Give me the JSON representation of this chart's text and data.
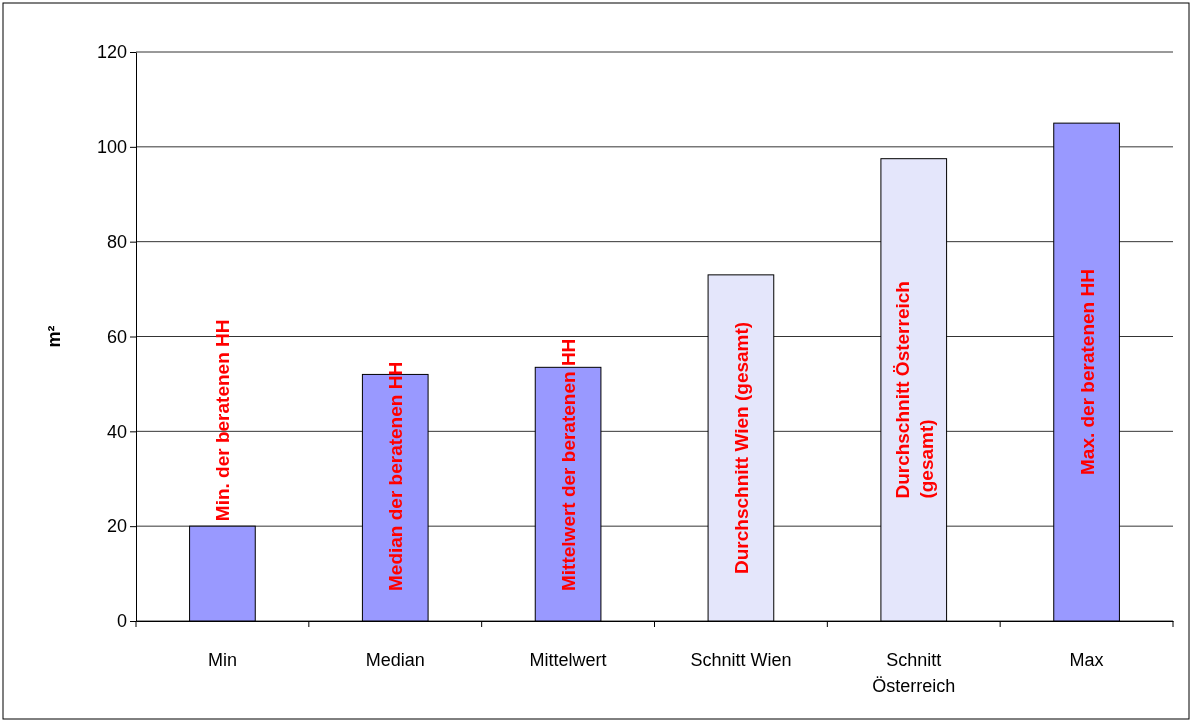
{
  "chart_data": {
    "type": "bar",
    "ylabel": "m²",
    "categories": [
      "Min",
      "Median",
      "Mittelwert",
      "Schnitt Wien",
      "Schnitt Österreich",
      "Max"
    ],
    "values": [
      20,
      52,
      53.5,
      73,
      97.5,
      105
    ],
    "colors": [
      "#9999ff",
      "#9999ff",
      "#9999ff",
      "#e4e6fb",
      "#e4e6fb",
      "#9999ff"
    ],
    "ylim": [
      0,
      120
    ],
    "yticks": [
      0,
      20,
      40,
      60,
      80,
      100,
      120
    ],
    "grid": "y",
    "annotations": [
      "Min. der beratenen HH",
      "Median der beratenen HH",
      "Mittelwert der beratenen HH",
      "Durchschnitt Wien (gesamt)",
      "Durchschnitt Österreich\n(gesamt)",
      "Max. der beratenen HH"
    ]
  }
}
